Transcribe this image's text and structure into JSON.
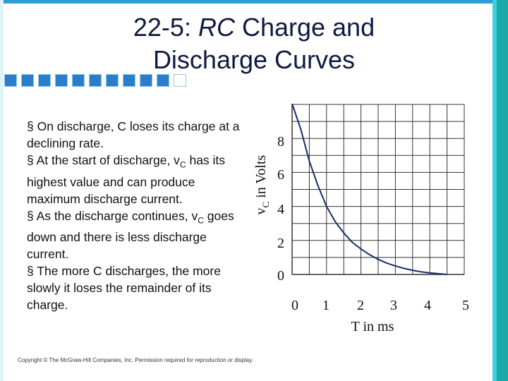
{
  "title": {
    "line1_pre": "22-5: ",
    "line1_em": "RC",
    "line1_post": " Charge and",
    "line2": "Discharge Curves"
  },
  "bullets": {
    "b1": "§ On discharge, C loses its charge at a declining rate.",
    "b2_pre": "§ At the start of discharge, v",
    "b2_sub": "C",
    "b2_post": " has its highest value and can produce maximum discharge current.",
    "b3_pre": "§ As the discharge continues, v",
    "b3_sub": "C",
    "b3_post": " goes down and there is less discharge current.",
    "b4": "§ The more C discharges, the more slowly it loses the remainder of its charge."
  },
  "copyright": "Copyright © The McGraw-Hill Companies, Inc. Permission required for reproduction or display.",
  "chart_data": {
    "type": "line",
    "ylabel_pre": "v",
    "ylabel_sub": "C",
    "ylabel_post": " in Volts",
    "xlabel": "T in ms",
    "x_ticks": [
      "0",
      "1",
      "2",
      "3",
      "4",
      "5"
    ],
    "y_ticks": [
      "8",
      "6",
      "4",
      "2",
      "0"
    ],
    "xlim": [
      0,
      5
    ],
    "ylim": [
      0,
      9
    ],
    "grid": true,
    "series": [
      {
        "color": "#1a2a6c",
        "x": [
          0,
          0.25,
          0.5,
          0.75,
          1,
          1.25,
          1.5,
          1.75,
          2,
          2.25,
          2.5,
          2.75,
          3,
          3.25,
          3.5,
          3.75,
          4,
          4.25,
          4.5
        ],
        "y": [
          9.9,
          7.7,
          6.0,
          4.7,
          3.6,
          2.8,
          2.2,
          1.7,
          1.35,
          1.05,
          0.8,
          0.6,
          0.45,
          0.32,
          0.22,
          0.14,
          0.08,
          0.04,
          0.0
        ]
      }
    ]
  }
}
